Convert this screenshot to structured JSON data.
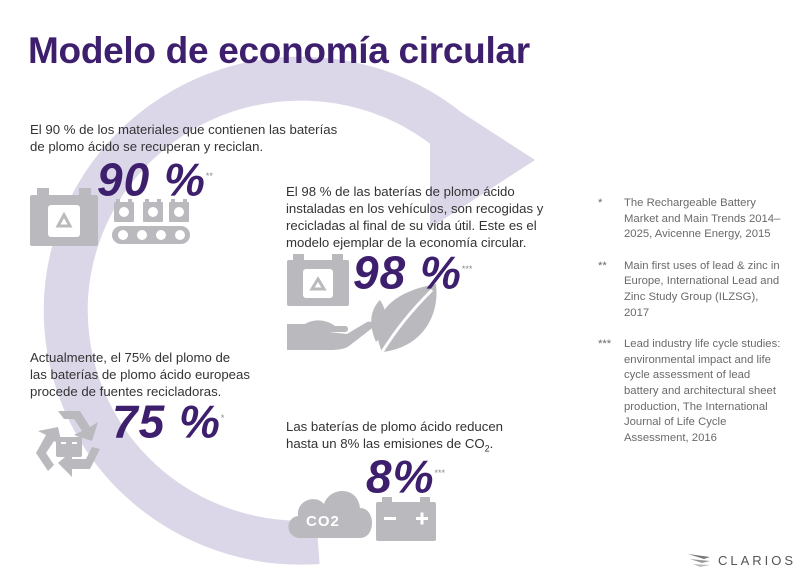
{
  "title": "Modelo de economía circular",
  "stats": [
    {
      "text_line1": "El 90 % de los materiales que contienen las baterías",
      "text_line2": "de plomo ácido se recuperan y reciclan.",
      "value": "90 %",
      "marker": "**"
    },
    {
      "text_line1": "El 98 % de las baterías de plomo ácido",
      "text_line2": "instaladas en los vehículos, son recogidas y",
      "text_line3": "recicladas al final de su vida útil. Este es el",
      "text_line4": "modelo ejemplar de la economía circular.",
      "value": "98 %",
      "marker": "***"
    },
    {
      "text_line1": "Actualmente, el 75% del plomo de",
      "text_line2": "las baterías de plomo ácido europeas",
      "text_line3": "procede de fuentes recicladoras.",
      "value": "75 %",
      "marker": "*"
    },
    {
      "text_line1": "Las baterías de plomo ácido reducen",
      "text_line2_prefix": "hasta un 8% las emisiones de CO",
      "text_line2_sub": "2",
      "text_line2_suffix": ".",
      "value": "8%",
      "marker": "***"
    }
  ],
  "cloud_label": "CO2",
  "references": [
    {
      "marker": "*",
      "text": "The Rechargeable Battery Market and Main Trends 2014–2025, Avicenne Energy, 2015"
    },
    {
      "marker": "**",
      "text": "Main first uses of lead & zinc in Europe, International Lead and Zinc Study Group (ILZSG), 2017"
    },
    {
      "marker": "***",
      "text": "Lead industry life cycle studies: environmental impact and life cycle assessment of lead battery and architectural sheet production, The International Journal of Life Cycle Assessment, 2016"
    }
  ],
  "logo": "CLARIOS",
  "colors": {
    "brand_purple": "#3d1f6e",
    "icon_gray": "#b9b9be",
    "circle_lavender": "#dcd7e8"
  }
}
